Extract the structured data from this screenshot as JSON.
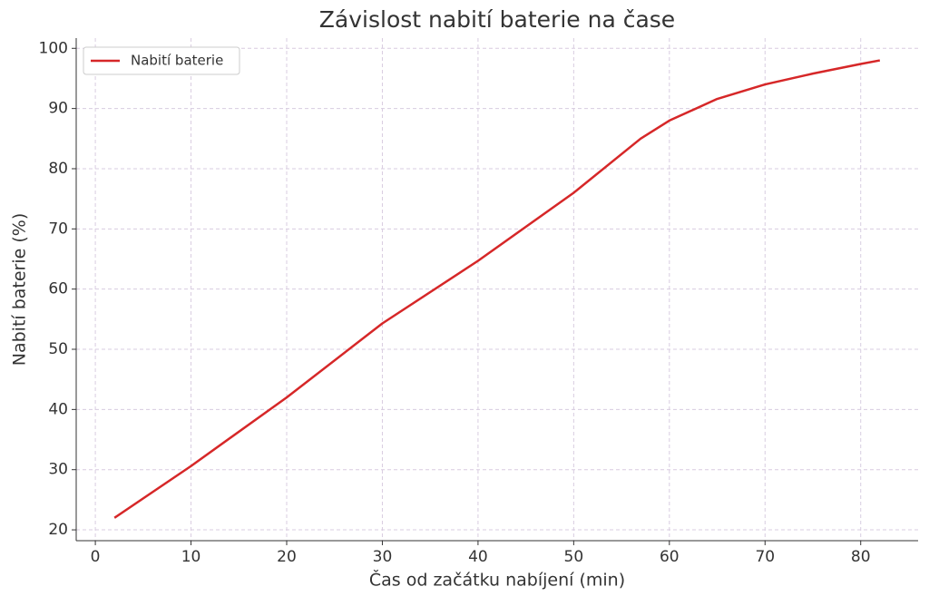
{
  "chart_data": {
    "type": "line",
    "title": "Závislost nabití baterie na čase",
    "x_label": "Čas od začátku nabíjení (min)",
    "y_label": "Nabití baterie (%)",
    "x": [
      2,
      10,
      20,
      30,
      40,
      50,
      57,
      60,
      65,
      70,
      75,
      80,
      82
    ],
    "series": [
      {
        "name": "Nabití baterie",
        "color": "#d62728",
        "values": [
          22,
          30.6,
          42,
          54.3,
          64.7,
          76,
          85,
          88,
          91.6,
          94,
          95.8,
          97.4,
          98
        ]
      }
    ],
    "xlim": [
      -2,
      86
    ],
    "ylim": [
      18.2,
      101.7
    ],
    "xticks": [
      0,
      10,
      20,
      30,
      40,
      50,
      60,
      70,
      80
    ],
    "yticks": [
      20,
      30,
      40,
      50,
      60,
      70,
      80,
      90,
      100
    ],
    "grid": true,
    "legend": "upper-left"
  }
}
